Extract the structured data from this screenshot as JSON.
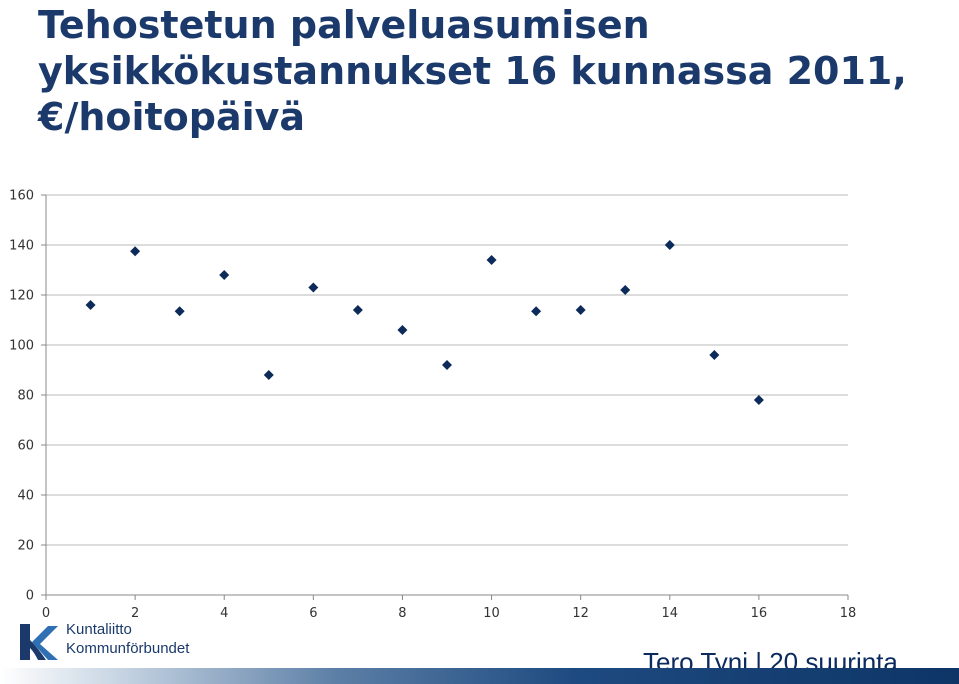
{
  "title": "Tehostetun palveluasumisen yksikkökustannukset 16 kunnassa 2011, €/hoitopäivä",
  "logo": {
    "line1": "Kuntaliitto",
    "line2": "Kommunförbundet",
    "icon": "kuntaliitto-logo-icon"
  },
  "footer": {
    "text": "Tero Tyni | 20 suurinta"
  },
  "colors": {
    "title": "#1b3a6b",
    "marker": "#0d2b5a",
    "grid": "#c8c8c8",
    "axis": "#888888"
  },
  "chart_data": {
    "type": "scatter",
    "title": "",
    "xlabel": "",
    "ylabel": "",
    "xlim": [
      0,
      18
    ],
    "ylim": [
      0,
      160
    ],
    "xticks": [
      0,
      2,
      4,
      6,
      8,
      10,
      12,
      14,
      16,
      18
    ],
    "yticks": [
      0,
      20,
      40,
      60,
      80,
      100,
      120,
      140,
      160
    ],
    "grid": "horizontal",
    "marker": "diamond",
    "series": [
      {
        "points": [
          {
            "x": 1,
            "y": 116
          },
          {
            "x": 2,
            "y": 137.5
          },
          {
            "x": 3,
            "y": 113.5
          },
          {
            "x": 4,
            "y": 128
          },
          {
            "x": 5,
            "y": 88
          },
          {
            "x": 6,
            "y": 123
          },
          {
            "x": 7,
            "y": 114
          },
          {
            "x": 8,
            "y": 106
          },
          {
            "x": 9,
            "y": 92
          },
          {
            "x": 10,
            "y": 134
          },
          {
            "x": 11,
            "y": 113.5
          },
          {
            "x": 12,
            "y": 114
          },
          {
            "x": 13,
            "y": 122
          },
          {
            "x": 14,
            "y": 140
          },
          {
            "x": 15,
            "y": 96
          },
          {
            "x": 16,
            "y": 78
          }
        ]
      }
    ]
  }
}
